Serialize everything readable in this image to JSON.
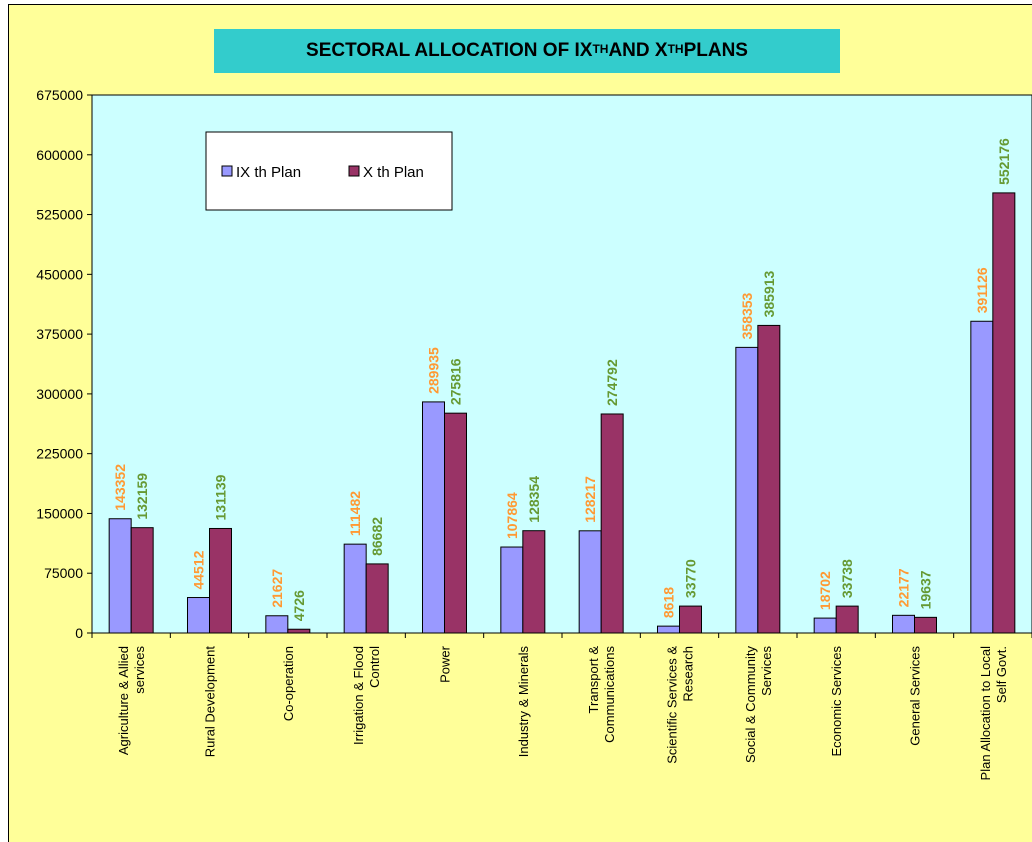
{
  "chart_data": {
    "type": "bar",
    "title": {
      "part1": "SECTORAL ALLOCATION OF IX ",
      "sup1": "TH",
      "part2": " AND X ",
      "sup2": "TH",
      "part3": " PLANS"
    },
    "xlabel": "",
    "ylabel": "",
    "ylim": [
      0,
      675000
    ],
    "yticks": [
      0,
      75000,
      150000,
      225000,
      300000,
      375000,
      450000,
      525000,
      600000,
      675000
    ],
    "categories": [
      [
        "Agriculture & Allied",
        "services"
      ],
      [
        "Rural Development"
      ],
      [
        "Co-operation"
      ],
      [
        "Irrigation & Flood",
        "Control"
      ],
      [
        "Power"
      ],
      [
        "Industry & Minerals"
      ],
      [
        "Transport &",
        "Communications"
      ],
      [
        "Scientific Services &",
        "Research"
      ],
      [
        "Social & Community",
        "Services"
      ],
      [
        "Economic Services"
      ],
      [
        "General Services"
      ],
      [
        "Plan Allocation to Local",
        "Self Govt."
      ]
    ],
    "series": [
      {
        "name": "IX th Plan",
        "color": "#9999ff",
        "label_color": "#ff9933",
        "values": [
          143352,
          44512,
          21627,
          111482,
          289935,
          107864,
          128217,
          8618,
          358353,
          18702,
          22177,
          391126
        ]
      },
      {
        "name": "X th Plan",
        "color": "#993366",
        "label_color": "#669933",
        "values": [
          132159,
          131139,
          4726,
          86682,
          275816,
          128354,
          274792,
          33770,
          385913,
          33738,
          19637,
          552176
        ]
      }
    ],
    "plot_background": "#ccffff",
    "page_background": "#ffff99",
    "title_background": "#33cccc",
    "legend_position": "top-left",
    "grid": false
  }
}
